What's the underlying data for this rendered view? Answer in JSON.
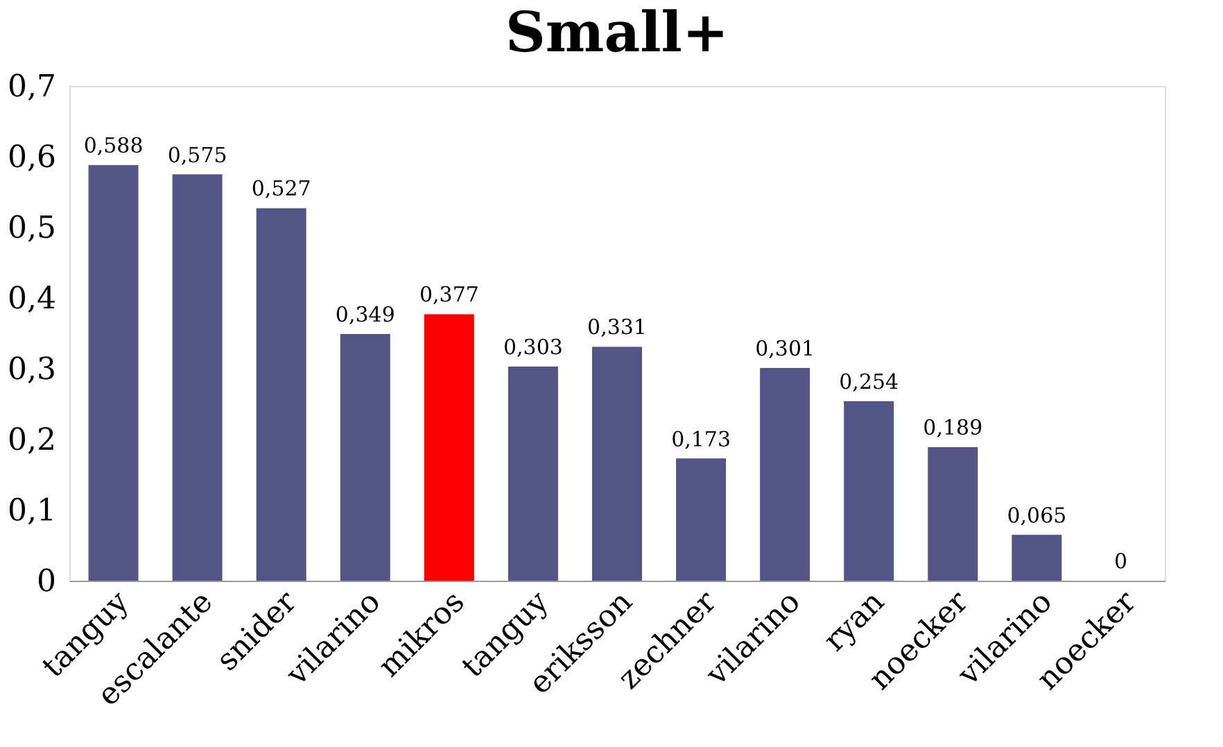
{
  "chart_data": {
    "type": "bar",
    "title": "Small+",
    "categories": [
      "tanguy",
      "escalante",
      "snider",
      "vilarino",
      "mikros",
      "tanguy",
      "eriksson",
      "zechner",
      "vilarino",
      "ryan",
      "noecker",
      "vilarino",
      "noecker"
    ],
    "values": [
      0.588,
      0.575,
      0.527,
      0.349,
      0.377,
      0.303,
      0.331,
      0.173,
      0.301,
      0.254,
      0.189,
      0.065,
      0
    ],
    "value_labels": [
      "0,588",
      "0,575",
      "0,527",
      "0,349",
      "0,377",
      "0,303",
      "0,331",
      "0,173",
      "0,301",
      "0,254",
      "0,189",
      "0,065",
      "0"
    ],
    "colors": [
      "#545587",
      "#545587",
      "#545587",
      "#545587",
      "#ff0000",
      "#545587",
      "#545587",
      "#545587",
      "#545587",
      "#545587",
      "#545587",
      "#545587",
      "#545587"
    ],
    "ylim": [
      0,
      0.7
    ],
    "yticks": [
      0,
      {
        "value": 0.1,
        "label": "0,1"
      },
      {
        "value": 0.2,
        "label": "0,2"
      },
      {
        "value": 0.3,
        "label": "0,3"
      },
      {
        "value": 0.4,
        "label": "0,4"
      },
      {
        "value": 0.5,
        "label": "0,5"
      },
      {
        "value": 0.6,
        "label": "0,6"
      },
      {
        "value": 0.7,
        "label": "0,7"
      }
    ],
    "grid": false,
    "legend": false
  }
}
